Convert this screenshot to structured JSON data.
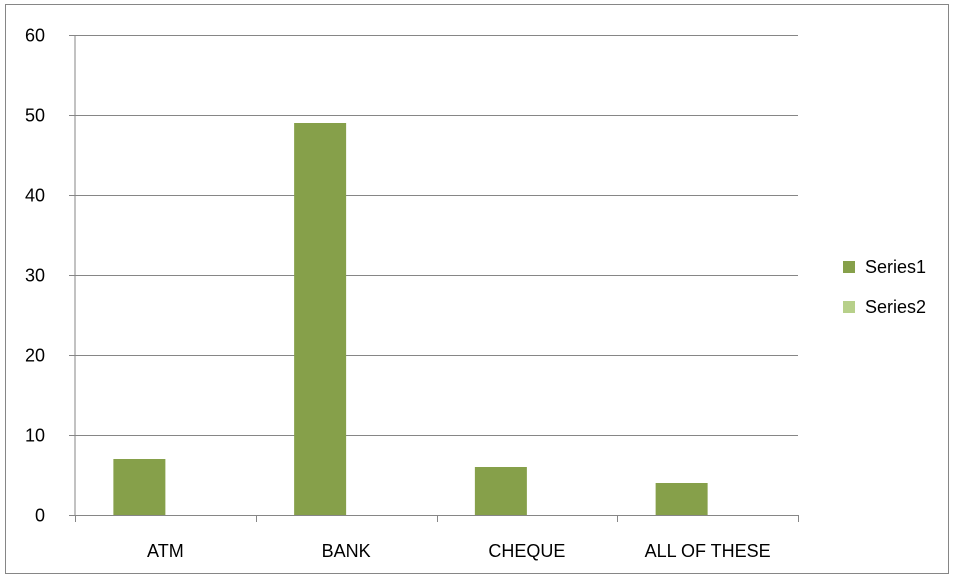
{
  "chart_data": {
    "type": "bar",
    "categories": [
      "ATM",
      "BANK",
      "CHEQUE",
      "ALL OF THESE"
    ],
    "series": [
      {
        "name": "Series1",
        "values": [
          7,
          49,
          6,
          4
        ],
        "color": "#86A04A"
      },
      {
        "name": "Series2",
        "values": [
          0,
          0,
          0,
          0
        ],
        "color": "#B7D08A"
      }
    ],
    "y_ticks": [
      "0",
      "10",
      "20",
      "30",
      "40",
      "50",
      "60"
    ],
    "ylim": [
      0,
      60
    ],
    "grid": true,
    "legend_position": "right",
    "axis_color": "#868686",
    "grid_color": "#868686"
  }
}
